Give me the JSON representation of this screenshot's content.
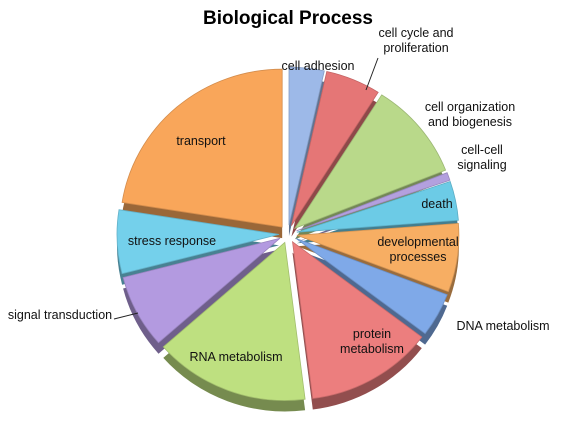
{
  "chart_data": {
    "type": "pie",
    "style": "3d-exploded",
    "title": "Biological Process",
    "slices": [
      {
        "label": "cell adhesion",
        "value": 3.5,
        "color": "#9DB9E8"
      },
      {
        "label": "cell cycle and proliferation",
        "value": 5.5,
        "color": "#E57676"
      },
      {
        "label": "cell organization and biogenesis",
        "value": 10.0,
        "color": "#B9D98A"
      },
      {
        "label": "cell-cell signaling",
        "value": 0.8,
        "color": "#B3A0DE"
      },
      {
        "label": "death",
        "value": 4.0,
        "color": "#6CCBE6"
      },
      {
        "label": "developmental processes",
        "value": 7.0,
        "color": "#F7AE63"
      },
      {
        "label": "DNA metabolism",
        "value": 4.5,
        "color": "#7FA9E8"
      },
      {
        "label": "protein metabolism",
        "value": 12.7,
        "color": "#EC7E7E"
      },
      {
        "label": "RNA metabolism",
        "value": 15.5,
        "color": "#BEE080"
      },
      {
        "label": "signal transduction",
        "value": 7.5,
        "color": "#B39AE0"
      },
      {
        "label": "stress response",
        "value": 6.5,
        "color": "#74D0EB"
      },
      {
        "label": "transport",
        "value": 22.5,
        "color": "#F9A65A"
      }
    ]
  }
}
